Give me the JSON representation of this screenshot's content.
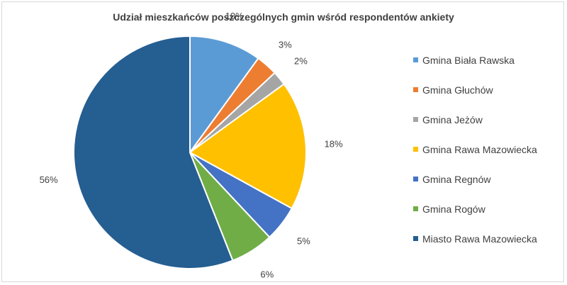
{
  "chart_data": {
    "type": "pie",
    "title": "Udział mieszkańców poszczególnych gmin wśród respondentów ankiety",
    "legend_position": "right",
    "series": [
      {
        "name": "Gmina Biała Rawska",
        "value": 10,
        "label": "10%",
        "color": "#5b9bd5"
      },
      {
        "name": "Gmina Głuchów",
        "value": 3,
        "label": "3%",
        "color": "#ed7d31"
      },
      {
        "name": "Gmina Jeżów",
        "value": 2,
        "label": "2%",
        "color": "#a5a5a5"
      },
      {
        "name": "Gmina Rawa Mazowiecka",
        "value": 18,
        "label": "18%",
        "color": "#ffc000"
      },
      {
        "name": "Gmina Regnów",
        "value": 5,
        "label": "5%",
        "color": "#4472c4"
      },
      {
        "name": "Gmina Rogów",
        "value": 6,
        "label": "6%",
        "color": "#70ad47"
      },
      {
        "name": "Miasto Rawa Mazowiecka",
        "value": 56,
        "label": "56%",
        "color": "#255e91"
      }
    ]
  }
}
